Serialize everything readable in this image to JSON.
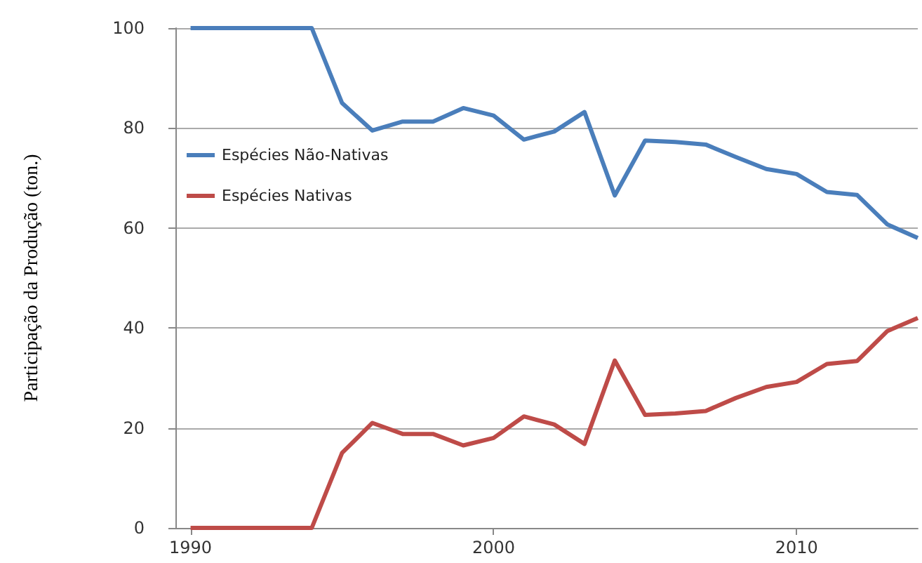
{
  "chart_data": {
    "type": "line",
    "ylabel": "Participação da Produção (ton.)",
    "x": [
      1990,
      1991,
      1992,
      1993,
      1994,
      1995,
      1996,
      1997,
      1998,
      1999,
      2000,
      2001,
      2002,
      2003,
      2004,
      2005,
      2006,
      2007,
      2008,
      2009,
      2010,
      2011,
      2012,
      2013,
      2014
    ],
    "series": [
      {
        "name": "Espécies Não-Nativas",
        "color": "#4a7ebb",
        "values": [
          100,
          100,
          100,
          100,
          100,
          85,
          79.5,
          81.3,
          81.3,
          84,
          82.5,
          77.7,
          79.3,
          83.2,
          66.5,
          77.5,
          77.2,
          76.7,
          74.2,
          71.8,
          70.8,
          67.2,
          66.6,
          60.7,
          58
        ]
      },
      {
        "name": "Espécies Nativas",
        "color": "#be4b48",
        "values": [
          0,
          0,
          0,
          0,
          0,
          15,
          21,
          18.8,
          18.8,
          16.5,
          18,
          22.3,
          20.7,
          16.8,
          33.5,
          22.6,
          22.9,
          23.4,
          26,
          28.2,
          29.2,
          32.8,
          33.4,
          39.4,
          42
        ]
      }
    ],
    "xlim": [
      1989.5,
      2014
    ],
    "xticks": [
      1990,
      2000,
      2010
    ],
    "ylim": [
      0,
      100
    ],
    "yticks": [
      0,
      20,
      40,
      60,
      80,
      100
    ],
    "grid": "y",
    "legend": "left",
    "marker": "none",
    "line_style": "solid"
  }
}
